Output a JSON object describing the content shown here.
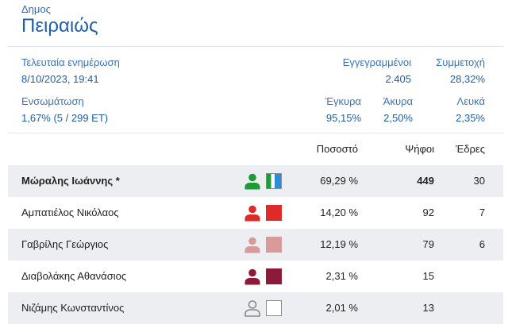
{
  "header": {
    "kicker": "Δημος",
    "title": "Πειραιώς"
  },
  "summary": {
    "last_update_label": "Τελευταία ενημέρωση",
    "last_update_value": "8/10/2023, 19:41",
    "registered_label": "Εγγεγραμμένοι",
    "registered_value": "2.405",
    "turnout_label": "Συμμετοχή",
    "turnout_value": "28,32%",
    "integration_label": "Ενσωμάτωση",
    "integration_value": "1,67% (5 / 299 ΕΤ)",
    "valid_label": "Έγκυρα",
    "valid_value": "95,15%",
    "invalid_label": "Άκυρα",
    "invalid_value": "2,50%",
    "blank_label": "Λευκά",
    "blank_value": "2,35%"
  },
  "table": {
    "columns": {
      "percent": "Ποσοστό",
      "votes": "Ψήφοι",
      "seats": "Έδρες"
    },
    "rows": [
      {
        "name": "Μώραλης Ιωάννης *",
        "percent": "69,29 %",
        "votes": "449",
        "seats": "30",
        "color": "#1e9a37",
        "swatch_style": "split",
        "swatch_colors": [
          "#1e9a37",
          "#ffffff",
          "#2a8fd6"
        ],
        "bold": true
      },
      {
        "name": "Αμπατιέλος Νικόλαος",
        "percent": "14,20 %",
        "votes": "92",
        "seats": "7",
        "color": "#e02a2a",
        "swatch_style": "solid",
        "bold": false
      },
      {
        "name": "Γαβρίλης Γεώργιος",
        "percent": "12,19 %",
        "votes": "79",
        "seats": "6",
        "color": "#d99a9a",
        "swatch_style": "solid",
        "bold": false
      },
      {
        "name": "Διαβολάκης Αθανάσιος",
        "percent": "2,31 %",
        "votes": "15",
        "seats": "",
        "color": "#8e1a3a",
        "swatch_style": "solid",
        "bold": false
      },
      {
        "name": "Νιζάμης Κωνσταντίνος",
        "percent": "2,01 %",
        "votes": "13",
        "seats": "",
        "color": "#8a8a8a",
        "swatch_style": "outline",
        "bold": false
      }
    ]
  }
}
